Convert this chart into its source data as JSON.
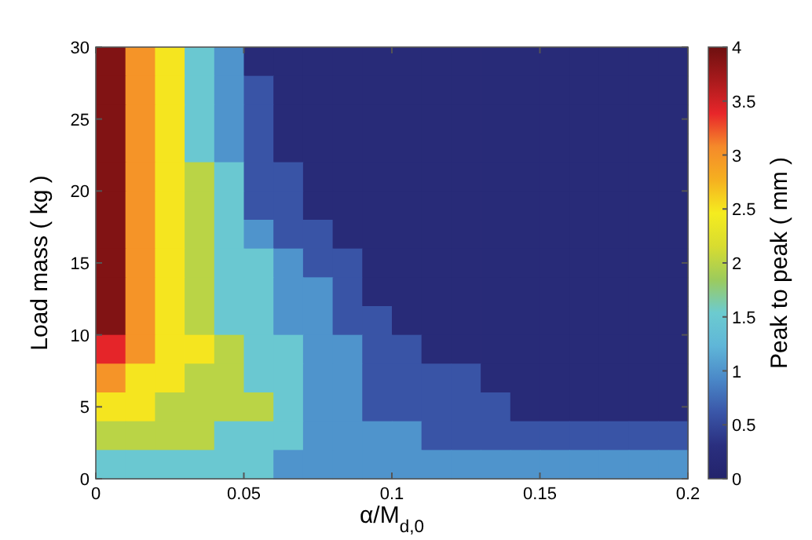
{
  "chart_data": {
    "type": "heatmap",
    "xlabel": "α/M$_{d,0}$",
    "ylabel": "Load mass ( kg )",
    "clabel": "Peak to peak ( mm )",
    "xlim": [
      0,
      0.2
    ],
    "xticks": [
      0,
      0.05,
      0.1,
      0.15,
      0.2
    ],
    "ylim": [
      0,
      30
    ],
    "yticks": [
      0,
      5,
      10,
      15,
      20,
      25,
      30
    ],
    "clim": [
      0,
      4
    ],
    "cticks": [
      0,
      0.5,
      1,
      1.5,
      2,
      2.5,
      3,
      3.5,
      4
    ],
    "cells": [
      [
        3.9,
        3.0,
        2.5,
        1.5,
        1.0,
        0.2,
        0.2,
        0.2,
        0.2,
        0.2,
        0.2,
        0.2,
        0.2,
        0.2,
        0.2,
        0.2,
        0.2,
        0.2,
        0.2,
        0.2
      ],
      [
        3.9,
        3.0,
        2.5,
        1.5,
        1.0,
        0.6,
        0.2,
        0.2,
        0.2,
        0.2,
        0.2,
        0.2,
        0.2,
        0.2,
        0.2,
        0.2,
        0.2,
        0.2,
        0.2,
        0.2
      ],
      [
        3.9,
        3.0,
        2.5,
        1.5,
        1.0,
        0.6,
        0.2,
        0.2,
        0.2,
        0.2,
        0.2,
        0.2,
        0.2,
        0.2,
        0.2,
        0.2,
        0.2,
        0.2,
        0.2,
        0.2
      ],
      [
        3.9,
        3.0,
        2.5,
        1.5,
        1.0,
        0.6,
        0.2,
        0.2,
        0.2,
        0.2,
        0.2,
        0.2,
        0.2,
        0.2,
        0.2,
        0.2,
        0.2,
        0.2,
        0.2,
        0.2
      ],
      [
        3.9,
        3.0,
        2.5,
        2.0,
        1.5,
        0.6,
        0.6,
        0.2,
        0.2,
        0.2,
        0.2,
        0.2,
        0.2,
        0.2,
        0.2,
        0.2,
        0.2,
        0.2,
        0.2,
        0.2
      ],
      [
        3.9,
        3.0,
        2.5,
        2.0,
        1.5,
        0.6,
        0.6,
        0.2,
        0.2,
        0.2,
        0.2,
        0.2,
        0.2,
        0.2,
        0.2,
        0.2,
        0.2,
        0.2,
        0.2,
        0.2
      ],
      [
        3.9,
        3.0,
        2.5,
        2.0,
        1.5,
        1.0,
        0.6,
        0.6,
        0.2,
        0.2,
        0.2,
        0.2,
        0.2,
        0.2,
        0.2,
        0.2,
        0.2,
        0.2,
        0.2,
        0.2
      ],
      [
        3.9,
        3.0,
        2.5,
        2.0,
        1.5,
        1.5,
        1.0,
        0.6,
        0.6,
        0.2,
        0.2,
        0.2,
        0.2,
        0.2,
        0.2,
        0.2,
        0.2,
        0.2,
        0.2,
        0.2
      ],
      [
        3.9,
        3.0,
        2.5,
        2.0,
        1.5,
        1.5,
        1.0,
        1.0,
        0.6,
        0.2,
        0.2,
        0.2,
        0.2,
        0.2,
        0.2,
        0.2,
        0.2,
        0.2,
        0.2,
        0.2
      ],
      [
        3.9,
        3.0,
        2.5,
        2.0,
        1.5,
        1.5,
        1.0,
        1.0,
        0.6,
        0.6,
        0.2,
        0.2,
        0.2,
        0.2,
        0.2,
        0.2,
        0.2,
        0.2,
        0.2,
        0.2
      ],
      [
        3.4,
        3.0,
        2.5,
        2.5,
        2.0,
        1.5,
        1.5,
        1.0,
        1.0,
        0.6,
        0.6,
        0.2,
        0.2,
        0.2,
        0.2,
        0.2,
        0.2,
        0.2,
        0.2,
        0.2
      ],
      [
        3.0,
        2.5,
        2.5,
        2.0,
        2.0,
        1.5,
        1.5,
        1.0,
        1.0,
        0.6,
        0.6,
        0.6,
        0.6,
        0.2,
        0.2,
        0.2,
        0.2,
        0.2,
        0.2,
        0.2
      ],
      [
        2.5,
        2.5,
        2.0,
        2.0,
        2.0,
        2.0,
        1.5,
        1.0,
        1.0,
        0.6,
        0.6,
        0.6,
        0.6,
        0.6,
        0.2,
        0.2,
        0.2,
        0.2,
        0.2,
        0.2
      ],
      [
        2.0,
        2.0,
        2.0,
        2.0,
        1.5,
        1.5,
        1.5,
        1.0,
        1.0,
        1.0,
        1.0,
        0.6,
        0.6,
        0.6,
        0.6,
        0.6,
        0.6,
        0.6,
        0.6,
        0.6
      ],
      [
        1.5,
        1.5,
        1.5,
        1.5,
        1.5,
        1.5,
        1.0,
        1.0,
        1.0,
        1.0,
        1.0,
        1.0,
        1.0,
        1.0,
        1.0,
        1.0,
        1.0,
        1.0,
        1.0,
        1.0
      ]
    ]
  }
}
